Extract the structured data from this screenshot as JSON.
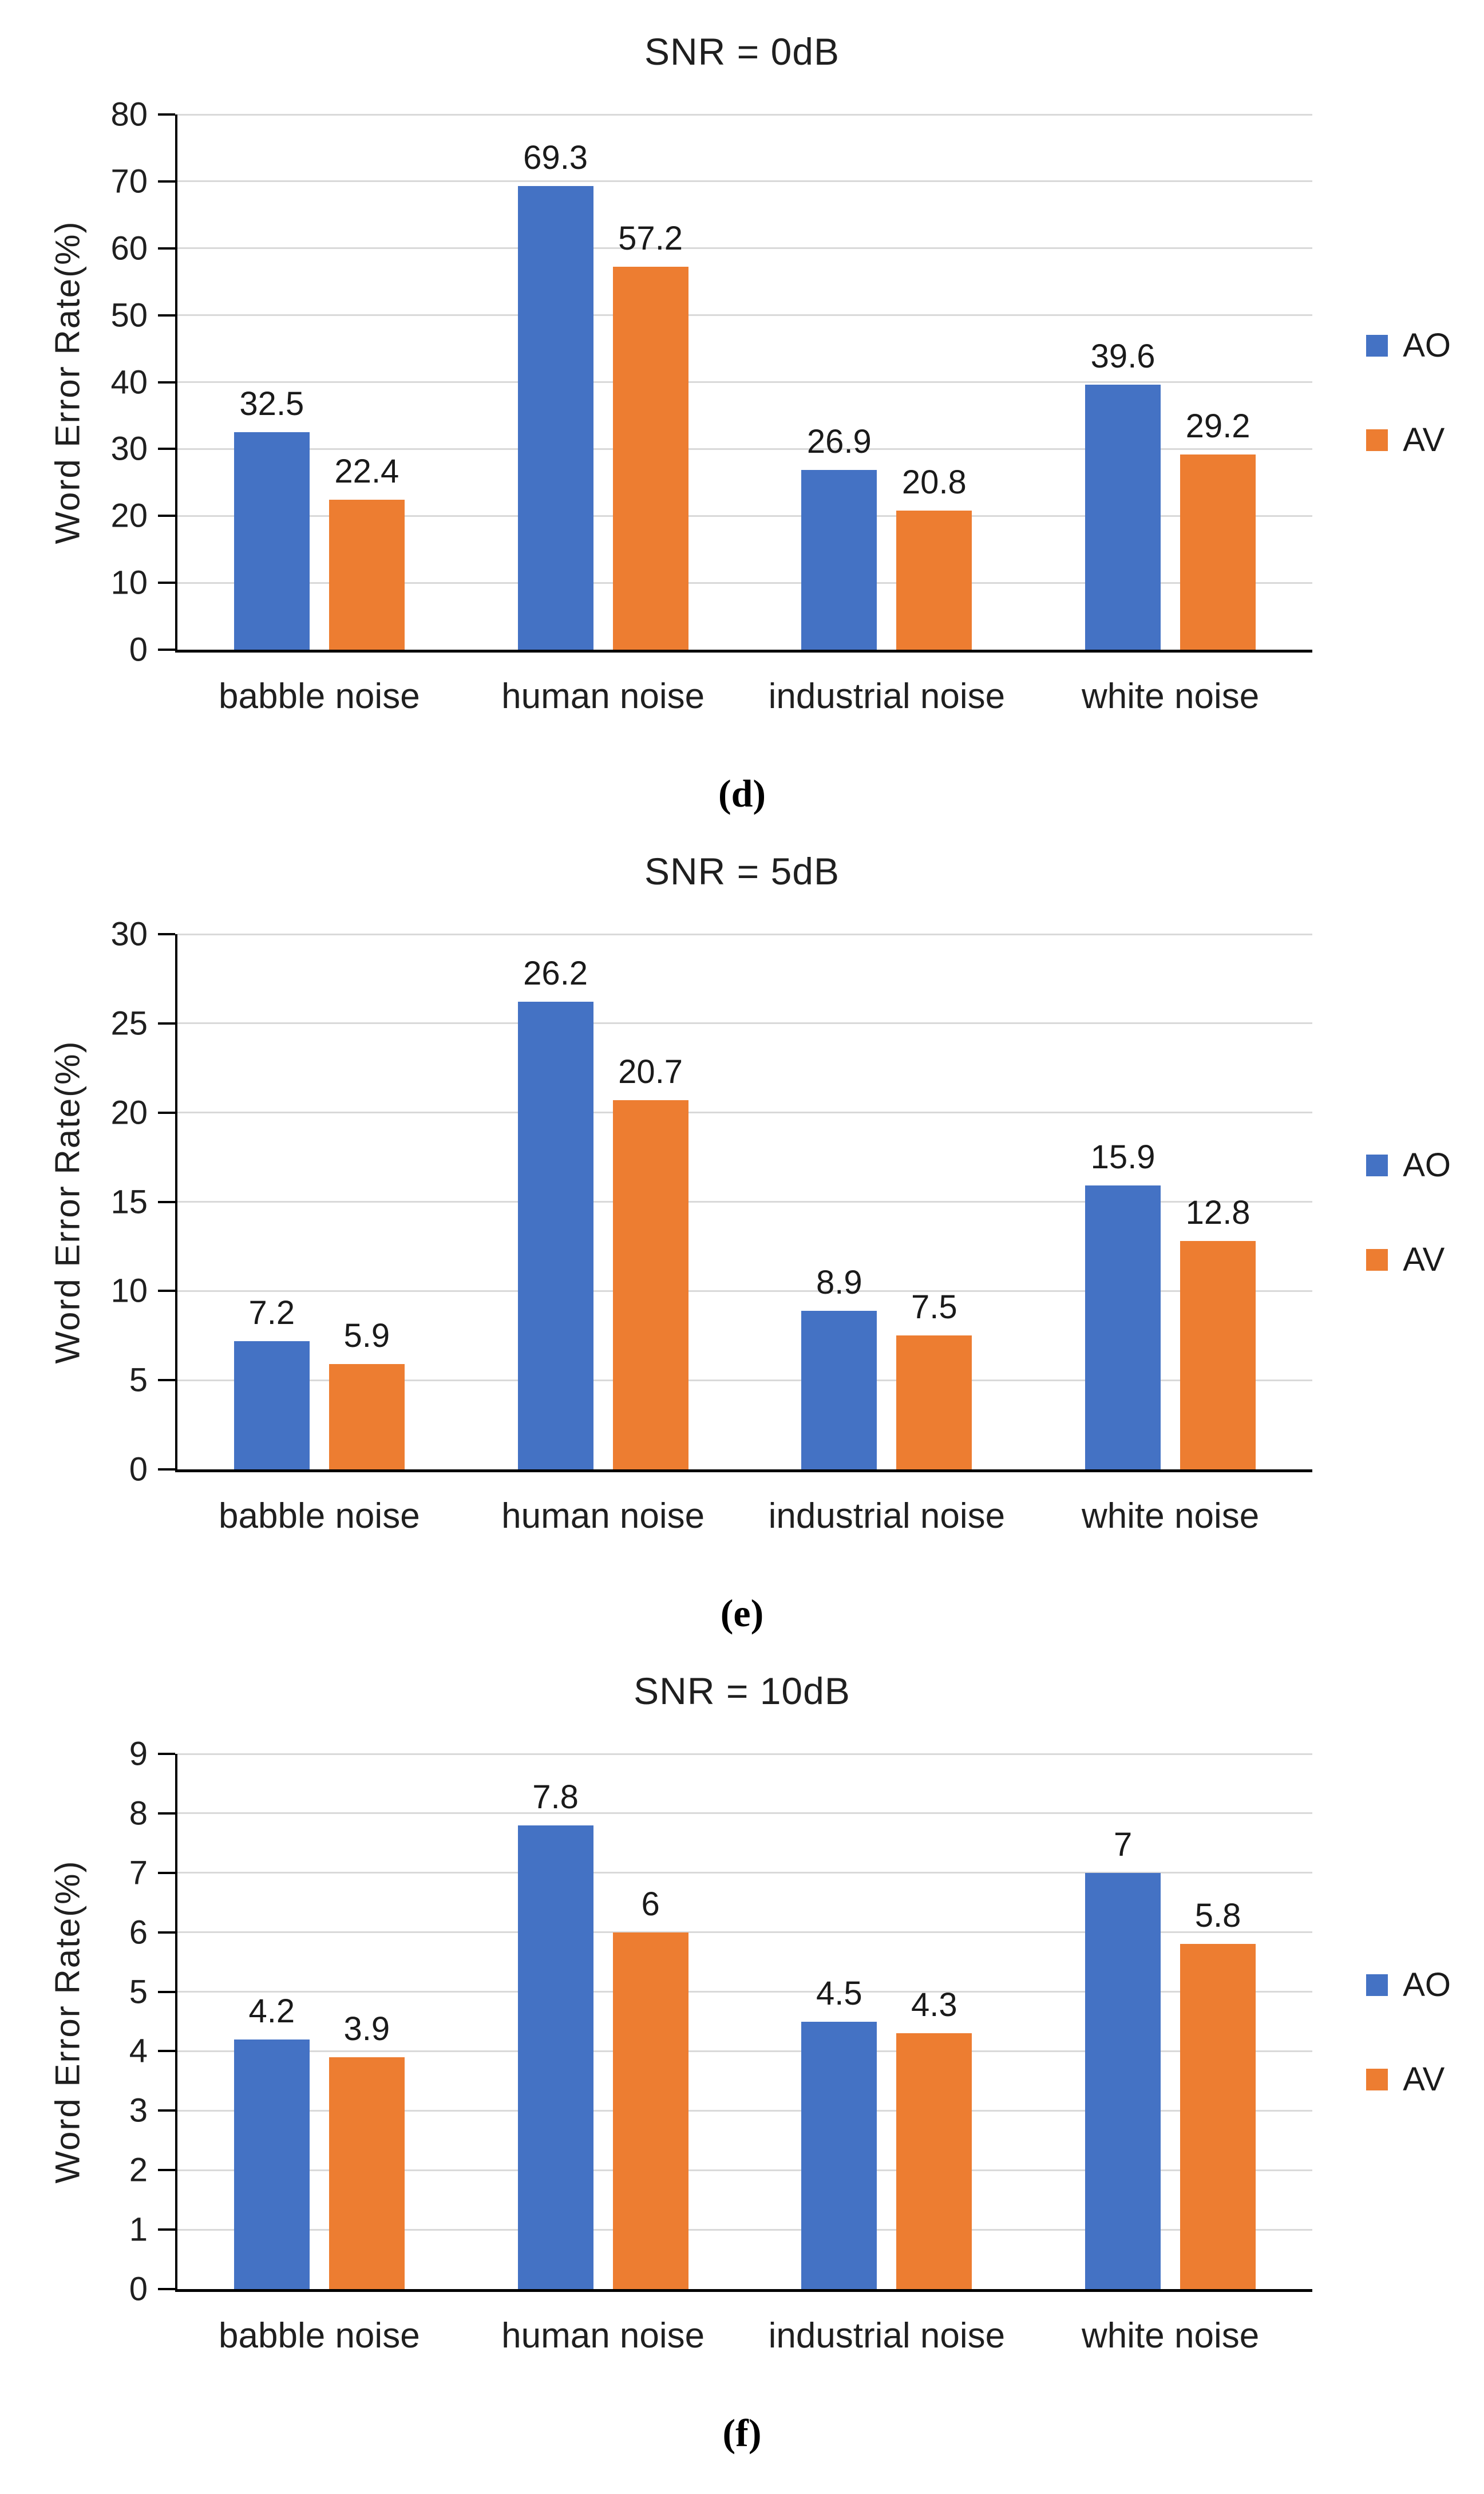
{
  "figure": {
    "background": "#FFFFFF",
    "panel_letters": [
      "(d)",
      "(e)",
      "(f)"
    ]
  },
  "chart_data": [
    {
      "type": "bar",
      "title": "SNR = 0dB",
      "ylabel": "Word Error Rate(%)",
      "panel_label": "(d)",
      "categories": [
        "babble noise",
        "human noise",
        "industrial noise",
        "white noise"
      ],
      "series": [
        {
          "name": "AO",
          "color": "#4472C4",
          "values": [
            32.5,
            69.3,
            26.9,
            39.6
          ],
          "labels": [
            "32.5",
            "69.3",
            "26.9",
            "39.6"
          ]
        },
        {
          "name": "AV",
          "color": "#ED7D31",
          "values": [
            22.4,
            57.2,
            20.8,
            29.2
          ],
          "labels": [
            "22.4",
            "57.2",
            "20.8",
            "29.2"
          ]
        }
      ],
      "ylim": [
        0,
        80
      ],
      "yticks": [
        0,
        10,
        20,
        30,
        40,
        50,
        60,
        70,
        80
      ],
      "grid": true,
      "legend_position": "right"
    },
    {
      "type": "bar",
      "title": "SNR = 5dB",
      "ylabel": "Word Error Rate(%)",
      "panel_label": "(e)",
      "categories": [
        "babble noise",
        "human noise",
        "industrial noise",
        "white noise"
      ],
      "series": [
        {
          "name": "AO",
          "color": "#4472C4",
          "values": [
            7.2,
            26.2,
            8.9,
            15.9
          ],
          "labels": [
            "7.2",
            "26.2",
            "8.9",
            "15.9"
          ]
        },
        {
          "name": "AV",
          "color": "#ED7D31",
          "values": [
            5.9,
            20.7,
            7.5,
            12.8
          ],
          "labels": [
            "5.9",
            "20.7",
            "7.5",
            "12.8"
          ]
        }
      ],
      "ylim": [
        0,
        30
      ],
      "yticks": [
        0,
        5,
        10,
        15,
        20,
        25,
        30
      ],
      "grid": true,
      "legend_position": "right"
    },
    {
      "type": "bar",
      "title": "SNR = 10dB",
      "ylabel": "Word Error Rate(%)",
      "panel_label": "(f)",
      "categories": [
        "babble noise",
        "human noise",
        "industrial noise",
        "white noise"
      ],
      "series": [
        {
          "name": "AO",
          "color": "#4472C4",
          "values": [
            4.2,
            7.8,
            4.5,
            7
          ],
          "labels": [
            "4.2",
            "7.8",
            "4.5",
            "7"
          ]
        },
        {
          "name": "AV",
          "color": "#ED7D31",
          "values": [
            3.9,
            6,
            4.3,
            5.8
          ],
          "labels": [
            "3.9",
            "6",
            "4.3",
            "5.8"
          ]
        }
      ],
      "ylim": [
        0,
        9
      ],
      "yticks": [
        0,
        1,
        2,
        3,
        4,
        5,
        6,
        7,
        8,
        9
      ],
      "grid": true,
      "legend_position": "right"
    }
  ]
}
